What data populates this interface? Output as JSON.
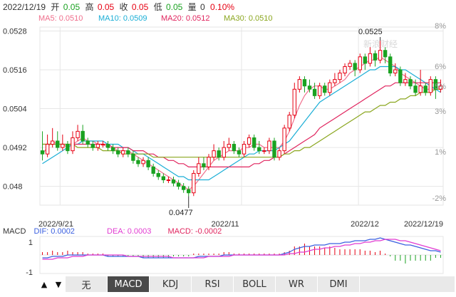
{
  "header": {
    "date": "2022/12/19",
    "open_label": "开",
    "open": "0.05",
    "high_label": "高",
    "high": "0.05",
    "close_label": "收",
    "close": "0.05",
    "low_label": "低",
    "low": "0.05",
    "volume_label": "量",
    "volume": "0",
    "change": "0.10%"
  },
  "ma_legend": [
    {
      "label": "MA5: 0.0510",
      "color": "#f06f8c"
    },
    {
      "label": "MA10: 0.0509",
      "color": "#1aaed6"
    },
    {
      "label": "MA20: 0.0512",
      "color": "#e0245e"
    },
    {
      "label": "MA30: 0.0510",
      "color": "#8aa61e"
    }
  ],
  "colors": {
    "up": "#e60012",
    "down": "#1aa221",
    "grid": "#e6e6e6"
  },
  "macd_legend": [
    {
      "label": "MACD",
      "color": "#333333"
    },
    {
      "label": "DIF: 0.0002",
      "color": "#3a5fe0"
    },
    {
      "label": "DEA: 0.0003",
      "color": "#e13bd1"
    },
    {
      "label": "MACD: -0.0002",
      "color": "#e0245e"
    }
  ],
  "watermark": "新浪财经",
  "tabs": {
    "prev": "▲",
    "next": "▼",
    "items": [
      "无",
      "MACD",
      "KDJ",
      "RSI",
      "BOLL",
      "WR",
      "DMI"
    ],
    "active": "MACD"
  },
  "chart_data": {
    "type": "candlestick",
    "y_ticks_left": [
      "0.0528",
      "0.0516",
      "0.0504",
      "0.0492",
      "0.048"
    ],
    "y_ticks_right": [
      "8%",
      "6%",
      "5%",
      "3%",
      "1%",
      "-2%"
    ],
    "x_ticks": [
      "2022/9/21",
      "2022/11",
      "2022/12",
      "2022/12/19"
    ],
    "ylim": [
      0.04742,
      0.05292
    ],
    "annotations": {
      "max": "0.0525",
      "min": "0.0477"
    },
    "macd_y_ticks": [
      "1",
      "-1"
    ],
    "candles": [
      [
        0.0491,
        0.049,
        0.0497,
        0.0488
      ],
      [
        0.049,
        0.0493,
        0.0496,
        0.0489
      ],
      [
        0.0493,
        0.0494,
        0.0498,
        0.0492
      ],
      [
        0.0494,
        0.0492,
        0.0497,
        0.0491
      ],
      [
        0.0492,
        0.0493,
        0.0496,
        0.0491
      ],
      [
        0.0493,
        0.0491,
        0.0494,
        0.049
      ],
      [
        0.0491,
        0.0495,
        0.0497,
        0.049
      ],
      [
        0.0495,
        0.0497,
        0.0499,
        0.0494
      ],
      [
        0.0497,
        0.0494,
        0.0499,
        0.0493
      ],
      [
        0.0494,
        0.0493,
        0.0495,
        0.0492
      ],
      [
        0.0493,
        0.0492,
        0.0494,
        0.0491
      ],
      [
        0.0492,
        0.0493,
        0.0494,
        0.0491
      ],
      [
        0.0493,
        0.0493,
        0.0494,
        0.0492
      ],
      [
        0.0493,
        0.0492,
        0.0494,
        0.0491
      ],
      [
        0.0492,
        0.0491,
        0.0493,
        0.049
      ],
      [
        0.0491,
        0.049,
        0.0492,
        0.0489
      ],
      [
        0.049,
        0.0491,
        0.0492,
        0.0489
      ],
      [
        0.0491,
        0.049,
        0.0492,
        0.0489
      ],
      [
        0.049,
        0.0488,
        0.0491,
        0.0487
      ],
      [
        0.0488,
        0.0487,
        0.0489,
        0.0486
      ],
      [
        0.0487,
        0.0488,
        0.0489,
        0.0486
      ],
      [
        0.0488,
        0.0486,
        0.0489,
        0.0485
      ],
      [
        0.0486,
        0.0484,
        0.0487,
        0.0483
      ],
      [
        0.0484,
        0.0483,
        0.0485,
        0.0482
      ],
      [
        0.0483,
        0.0482,
        0.0484,
        0.0481
      ],
      [
        0.0482,
        0.0482,
        0.0483,
        0.0481
      ],
      [
        0.0482,
        0.0481,
        0.0483,
        0.048
      ],
      [
        0.0481,
        0.048,
        0.0482,
        0.0479
      ],
      [
        0.048,
        0.0479,
        0.0481,
        0.0478
      ],
      [
        0.0479,
        0.0478,
        0.048,
        0.0477
      ],
      [
        0.0478,
        0.0484,
        0.0485,
        0.0477
      ],
      [
        0.0484,
        0.0487,
        0.0489,
        0.0483
      ],
      [
        0.0487,
        0.0486,
        0.0489,
        0.0485
      ],
      [
        0.0486,
        0.0489,
        0.049,
        0.0485
      ],
      [
        0.0489,
        0.0491,
        0.0493,
        0.0488
      ],
      [
        0.0491,
        0.0489,
        0.0492,
        0.0488
      ],
      [
        0.0489,
        0.0492,
        0.0494,
        0.0488
      ],
      [
        0.0492,
        0.0493,
        0.0495,
        0.0491
      ],
      [
        0.0493,
        0.0491,
        0.0494,
        0.049
      ],
      [
        0.0491,
        0.049,
        0.0492,
        0.0489
      ],
      [
        0.049,
        0.0493,
        0.0494,
        0.0489
      ],
      [
        0.0493,
        0.0495,
        0.0496,
        0.0492
      ],
      [
        0.0495,
        0.0492,
        0.0496,
        0.0491
      ],
      [
        0.0492,
        0.0491,
        0.0494,
        0.049
      ],
      [
        0.0491,
        0.0491,
        0.0492,
        0.049
      ],
      [
        0.0491,
        0.0494,
        0.0495,
        0.049
      ],
      [
        0.0494,
        0.0489,
        0.0495,
        0.0488
      ],
      [
        0.0489,
        0.0491,
        0.0492,
        0.0488
      ],
      [
        0.0491,
        0.0498,
        0.0499,
        0.049
      ],
      [
        0.0498,
        0.0502,
        0.0503,
        0.0497
      ],
      [
        0.0502,
        0.051,
        0.0512,
        0.0501
      ],
      [
        0.051,
        0.0513,
        0.0514,
        0.0509
      ],
      [
        0.0513,
        0.0511,
        0.0514,
        0.0509
      ],
      [
        0.0511,
        0.051,
        0.0513,
        0.0509
      ],
      [
        0.051,
        0.0508,
        0.0512,
        0.0507
      ],
      [
        0.0508,
        0.0511,
        0.0512,
        0.0507
      ],
      [
        0.0511,
        0.0509,
        0.0512,
        0.0508
      ],
      [
        0.0509,
        0.0512,
        0.0513,
        0.0508
      ],
      [
        0.0512,
        0.0513,
        0.0515,
        0.0511
      ],
      [
        0.0513,
        0.0515,
        0.0516,
        0.0512
      ],
      [
        0.0515,
        0.0517,
        0.0518,
        0.0514
      ],
      [
        0.0517,
        0.0518,
        0.0519,
        0.0516
      ],
      [
        0.0518,
        0.0516,
        0.0519,
        0.0514
      ],
      [
        0.0516,
        0.052,
        0.0521,
        0.0515
      ],
      [
        0.052,
        0.0518,
        0.0521,
        0.0516
      ],
      [
        0.0518,
        0.0521,
        0.0523,
        0.0517
      ],
      [
        0.0521,
        0.0519,
        0.0522,
        0.0517
      ],
      [
        0.0519,
        0.0522,
        0.0525,
        0.0518
      ],
      [
        0.0522,
        0.052,
        0.0523,
        0.0518
      ],
      [
        0.052,
        0.0515,
        0.0521,
        0.0514
      ],
      [
        0.0515,
        0.0516,
        0.0518,
        0.0514
      ],
      [
        0.0516,
        0.0512,
        0.0517,
        0.0511
      ],
      [
        0.0512,
        0.0513,
        0.0515,
        0.0511
      ],
      [
        0.0513,
        0.0511,
        0.0514,
        0.051
      ],
      [
        0.0511,
        0.0509,
        0.0513,
        0.0508
      ],
      [
        0.0509,
        0.0511,
        0.0516,
        0.0508
      ],
      [
        0.0511,
        0.0509,
        0.0512,
        0.0508
      ],
      [
        0.0509,
        0.0513,
        0.0514,
        0.0508
      ],
      [
        0.0513,
        0.051,
        0.0514,
        0.0507
      ],
      [
        0.051,
        0.0511,
        0.0513,
        0.0509
      ]
    ],
    "series": [
      {
        "name": "MA5",
        "color": "#f06f8c",
        "values": [
          0.049,
          0.0492,
          0.0494,
          0.0493,
          0.0493,
          0.0492,
          0.0493,
          0.0494,
          0.0495,
          0.0494,
          0.0494,
          0.0493,
          0.0493,
          0.0492,
          0.0492,
          0.0491,
          0.0491,
          0.0491,
          0.049,
          0.0489,
          0.0488,
          0.0487,
          0.0486,
          0.0485,
          0.0484,
          0.0483,
          0.0482,
          0.0481,
          0.048,
          0.0479,
          0.048,
          0.0482,
          0.0484,
          0.0486,
          0.0488,
          0.0489,
          0.049,
          0.0491,
          0.0491,
          0.0491,
          0.0492,
          0.0492,
          0.0493,
          0.0493,
          0.0492,
          0.0492,
          0.0492,
          0.0492,
          0.0494,
          0.0497,
          0.0501,
          0.0505,
          0.0508,
          0.051,
          0.0511,
          0.0511,
          0.051,
          0.051,
          0.0511,
          0.0512,
          0.0513,
          0.0515,
          0.0516,
          0.0517,
          0.0518,
          0.0519,
          0.0519,
          0.052,
          0.0519,
          0.0518,
          0.0517,
          0.0515,
          0.0514,
          0.0513,
          0.0512,
          0.0511,
          0.051,
          0.051,
          0.051,
          0.051
        ]
      },
      {
        "name": "MA10",
        "color": "#1aaed6",
        "values": [
          0.0487,
          0.0488,
          0.0489,
          0.049,
          0.0491,
          0.0492,
          0.0493,
          0.0493,
          0.0494,
          0.0494,
          0.0494,
          0.0494,
          0.0494,
          0.0493,
          0.0493,
          0.0493,
          0.0492,
          0.0492,
          0.0491,
          0.049,
          0.049,
          0.0489,
          0.0488,
          0.0487,
          0.0486,
          0.0485,
          0.0484,
          0.0483,
          0.0483,
          0.0482,
          0.0482,
          0.0482,
          0.0482,
          0.0482,
          0.0483,
          0.0484,
          0.0485,
          0.0486,
          0.0487,
          0.0488,
          0.0489,
          0.049,
          0.049,
          0.0491,
          0.0491,
          0.0491,
          0.0491,
          0.0492,
          0.0493,
          0.0494,
          0.0496,
          0.0498,
          0.05,
          0.0502,
          0.0504,
          0.0506,
          0.0507,
          0.0508,
          0.0509,
          0.051,
          0.0511,
          0.0512,
          0.0513,
          0.0514,
          0.0515,
          0.0516,
          0.0516,
          0.0517,
          0.0517,
          0.0517,
          0.0517,
          0.0516,
          0.0516,
          0.0515,
          0.0514,
          0.0513,
          0.0512,
          0.0511,
          0.051,
          0.0509
        ]
      },
      {
        "name": "MA20",
        "color": "#e0245e",
        "values": [
          0.0493,
          0.0493,
          0.0493,
          0.0493,
          0.0493,
          0.0493,
          0.0493,
          0.0493,
          0.0493,
          0.0493,
          0.0493,
          0.0493,
          0.0493,
          0.0493,
          0.0492,
          0.0492,
          0.0492,
          0.0492,
          0.0491,
          0.0491,
          0.0491,
          0.049,
          0.049,
          0.0489,
          0.0489,
          0.0488,
          0.0488,
          0.0487,
          0.0487,
          0.0486,
          0.0486,
          0.0486,
          0.0486,
          0.0486,
          0.0486,
          0.0486,
          0.0486,
          0.0486,
          0.0486,
          0.0486,
          0.0486,
          0.0486,
          0.0487,
          0.0487,
          0.0488,
          0.0488,
          0.0489,
          0.0489,
          0.049,
          0.0491,
          0.0492,
          0.0493,
          0.0494,
          0.0495,
          0.0496,
          0.0498,
          0.0499,
          0.05,
          0.0501,
          0.0502,
          0.0503,
          0.0504,
          0.0505,
          0.0506,
          0.0507,
          0.0508,
          0.0509,
          0.051,
          0.0511,
          0.0511,
          0.0512,
          0.0512,
          0.0512,
          0.0512,
          0.0512,
          0.0512,
          0.0512,
          0.0512,
          0.0512,
          0.0512
        ]
      },
      {
        "name": "MA30",
        "color": "#8aa61e",
        "values": [
          0.0493,
          0.0493,
          0.0493,
          0.0493,
          0.0493,
          0.0493,
          0.0493,
          0.0492,
          0.0492,
          0.0492,
          0.0492,
          0.0492,
          0.0491,
          0.0491,
          0.0491,
          0.0491,
          0.049,
          0.049,
          0.049,
          0.049,
          0.049,
          0.049,
          0.0489,
          0.0489,
          0.0489,
          0.0489,
          0.0489,
          0.0489,
          0.0489,
          0.0489,
          0.0489,
          0.0489,
          0.0489,
          0.0489,
          0.0489,
          0.0489,
          0.0489,
          0.0489,
          0.0489,
          0.0489,
          0.0489,
          0.0489,
          0.0489,
          0.0489,
          0.0489,
          0.0489,
          0.0489,
          0.0489,
          0.049,
          0.049,
          0.0491,
          0.0491,
          0.0492,
          0.0492,
          0.0493,
          0.0494,
          0.0495,
          0.0496,
          0.0497,
          0.0498,
          0.0499,
          0.05,
          0.0501,
          0.0502,
          0.0503,
          0.0503,
          0.0504,
          0.0505,
          0.0505,
          0.0506,
          0.0506,
          0.0507,
          0.0507,
          0.0508,
          0.0508,
          0.0509,
          0.0509,
          0.0509,
          0.051,
          0.051
        ]
      }
    ],
    "macd": {
      "dif": [
        -0.0002,
        -0.0002,
        -0.0001,
        -0.0001,
        -0.0001,
        0.0,
        0.0,
        0.0,
        0.0,
        0.0,
        0.0,
        0.0,
        0.0,
        -0.0001,
        -0.0001,
        -0.0001,
        -0.0001,
        -0.0001,
        -0.0001,
        -0.0001,
        -0.0002,
        -0.0002,
        -0.0002,
        -0.0002,
        -0.0002,
        -0.0002,
        -0.0002,
        -0.0002,
        -0.0002,
        -0.0002,
        -0.0002,
        -0.0001,
        -0.0001,
        -0.0001,
        -0.0001,
        -0.0001,
        0.0,
        0.0,
        0.0,
        0.0,
        0.0,
        0.0,
        0.0,
        0.0,
        0.0,
        0.0,
        0.0,
        0.0,
        0.0001,
        0.0002,
        0.0004,
        0.0005,
        0.0006,
        0.0006,
        0.0007,
        0.0007,
        0.0007,
        0.0008,
        0.0008,
        0.0008,
        0.0009,
        0.0009,
        0.001,
        0.001,
        0.001,
        0.0011,
        0.0011,
        0.0012,
        0.0011,
        0.001,
        0.0009,
        0.0008,
        0.0007,
        0.0007,
        0.0006,
        0.0005,
        0.0004,
        0.0003,
        0.0003,
        0.0002
      ],
      "dea": [
        -0.0003,
        -0.0003,
        -0.0003,
        -0.0002,
        -0.0002,
        -0.0002,
        -0.0001,
        -0.0001,
        -0.0001,
        0.0,
        0.0,
        0.0,
        0.0,
        0.0,
        0.0,
        0.0,
        0.0,
        -0.0001,
        -0.0001,
        -0.0001,
        -0.0001,
        -0.0001,
        -0.0001,
        -0.0001,
        -0.0001,
        -0.0001,
        -0.0002,
        -0.0002,
        -0.0002,
        -0.0002,
        -0.0002,
        -0.0002,
        -0.0002,
        -0.0001,
        -0.0001,
        -0.0001,
        -0.0001,
        -0.0001,
        0.0,
        0.0,
        0.0,
        0.0,
        0.0,
        0.0,
        0.0,
        0.0,
        0.0,
        0.0,
        0.0,
        0.0001,
        0.0001,
        0.0002,
        0.0002,
        0.0003,
        0.0004,
        0.0004,
        0.0005,
        0.0005,
        0.0006,
        0.0006,
        0.0007,
        0.0007,
        0.0008,
        0.0008,
        0.0009,
        0.0009,
        0.001,
        0.001,
        0.0011,
        0.0011,
        0.0011,
        0.001,
        0.001,
        0.0009,
        0.0008,
        0.0007,
        0.0006,
        0.0005,
        0.0004,
        0.0003
      ],
      "hist": [
        0.0002,
        0.0002,
        0.0003,
        0.0002,
        0.0002,
        0.0003,
        0.0002,
        0.0002,
        0.0002,
        0.0001,
        0.0001,
        0.0001,
        0.0001,
        -0.0001,
        -0.0001,
        -0.0001,
        -0.0001,
        -0.0001,
        -0.0001,
        -0.0001,
        -0.0002,
        -0.0002,
        -0.0002,
        -0.0002,
        -0.0002,
        -0.0002,
        -0.0001,
        -0.0001,
        -0.0001,
        -0.0001,
        0.0001,
        0.0001,
        0.0001,
        0.0001,
        0.0001,
        0.0001,
        0.0002,
        0.0002,
        0.0001,
        0.0001,
        0.0001,
        0.0001,
        0.0001,
        0.0001,
        0.0001,
        0.0001,
        0.0001,
        0.0001,
        0.0002,
        0.0003,
        0.0006,
        0.0006,
        0.0008,
        0.0006,
        0.0006,
        0.0006,
        0.0005,
        0.0006,
        0.0005,
        0.0004,
        0.0004,
        0.0004,
        0.0004,
        0.0004,
        0.0003,
        0.0003,
        0.0002,
        0.0003,
        0.0001,
        -0.0001,
        -0.0004,
        -0.0004,
        -0.0006,
        -0.0004,
        -0.0004,
        -0.0004,
        -0.0004,
        -0.0004,
        -0.0002,
        -0.0002
      ]
    }
  }
}
